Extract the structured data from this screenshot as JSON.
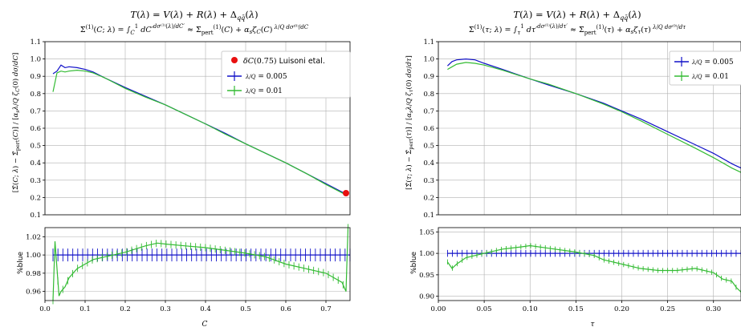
{
  "figure": {
    "colors": {
      "blue": "#1010c8",
      "green": "#33bb33",
      "red": "#e81010",
      "grid": "#b0b0b0"
    }
  },
  "chart_data": [
    {
      "type": "line",
      "title_line1": "T(λ) = V(λ) + R(λ) + Δ_qq̄(λ)",
      "title_line2": "Σ̄⁽¹⁾(C;λ) = ∫_C¹ dC′ dσ⁽¹⁾(λ)/dC′ ≈ Σ̄⁽¹⁾_pert(C) + α_s ζ_C(C) (λ/Q) dσ⁽⁰⁾/dC",
      "ylabel": "[Σ̄(C;λ) − Σ̄_pert(C)] / [α_s (λ/Q) ζ_C(0) dσ/dC]",
      "xlabel": "C",
      "xlim": [
        0.0,
        0.76
      ],
      "ylim": [
        0.1,
        1.1
      ],
      "xticks": [
        0.0,
        0.1,
        0.2,
        0.3,
        0.4,
        0.5,
        0.6,
        0.7
      ],
      "yticks": [
        0.1,
        0.2,
        0.3,
        0.4,
        0.5,
        0.6,
        0.7,
        0.8,
        0.9,
        1.0,
        1.1
      ],
      "grid": true,
      "legend": "top-right",
      "legend_entries": [
        "δC(0.75) Luisoni etal.",
        "λ/Q = 0.005",
        "λ/Q = 0.01"
      ],
      "point": {
        "name": "δC(0.75) Luisoni etal.",
        "x": 0.75,
        "y": 0.225
      },
      "series": [
        {
          "name": "λ/Q = 0.005",
          "color": "blue",
          "x": [
            0.02,
            0.03,
            0.04,
            0.05,
            0.06,
            0.08,
            0.1,
            0.12,
            0.15,
            0.2,
            0.25,
            0.3,
            0.35,
            0.4,
            0.45,
            0.5,
            0.55,
            0.6,
            0.65,
            0.7,
            0.75
          ],
          "y": [
            0.915,
            0.93,
            0.965,
            0.95,
            0.955,
            0.95,
            0.94,
            0.925,
            0.89,
            0.835,
            0.785,
            0.735,
            0.68,
            0.625,
            0.57,
            0.51,
            0.455,
            0.4,
            0.34,
            0.28,
            0.22
          ]
        },
        {
          "name": "λ/Q = 0.01",
          "color": "green",
          "x": [
            0.02,
            0.03,
            0.04,
            0.05,
            0.06,
            0.08,
            0.1,
            0.12,
            0.15,
            0.2,
            0.25,
            0.3,
            0.35,
            0.4,
            0.45,
            0.5,
            0.55,
            0.6,
            0.65,
            0.7,
            0.75
          ],
          "y": [
            0.81,
            0.92,
            0.93,
            0.925,
            0.93,
            0.935,
            0.93,
            0.92,
            0.89,
            0.83,
            0.78,
            0.735,
            0.68,
            0.625,
            0.565,
            0.51,
            0.455,
            0.4,
            0.34,
            0.275,
            0.215
          ]
        }
      ]
    },
    {
      "type": "line",
      "ylabel": "%blue",
      "xlabel": "C",
      "xlim": [
        0.0,
        0.76
      ],
      "ylim": [
        0.95,
        1.03
      ],
      "xticks": [
        0.0,
        0.1,
        0.2,
        0.3,
        0.4,
        0.5,
        0.6,
        0.7
      ],
      "xtick_labels": [
        "0.0",
        "0.1",
        "0.2",
        "0.3",
        "0.4",
        "0.5",
        "0.6",
        "0.7"
      ],
      "yticks": [
        0.96,
        0.98,
        1.0,
        1.02
      ],
      "ytick_labels": [
        "0.96",
        "0.98",
        "1.00",
        "1.02"
      ],
      "grid": true,
      "series": [
        {
          "name": "blue",
          "color": "blue",
          "x": [
            0.02,
            0.76
          ],
          "y": [
            1.0,
            1.0
          ]
        },
        {
          "name": "green",
          "color": "green",
          "x": [
            0.02,
            0.025,
            0.03,
            0.035,
            0.04,
            0.05,
            0.06,
            0.08,
            0.1,
            0.12,
            0.15,
            0.2,
            0.25,
            0.28,
            0.3,
            0.35,
            0.4,
            0.45,
            0.5,
            0.55,
            0.6,
            0.65,
            0.7,
            0.72,
            0.74,
            0.75,
            0.755
          ],
          "y": [
            0.95,
            1.015,
            0.985,
            0.955,
            0.96,
            0.965,
            0.975,
            0.985,
            0.99,
            0.995,
            0.998,
            1.003,
            1.01,
            1.013,
            1.012,
            1.01,
            1.008,
            1.005,
            1.002,
            0.998,
            0.99,
            0.985,
            0.98,
            0.975,
            0.97,
            0.96,
            1.03
          ]
        }
      ]
    },
    {
      "type": "line",
      "title_line1": "T(λ) = V(λ) + R(λ) + Δ_qq̄(λ)",
      "title_line2": "Σ̄⁽¹⁾(τ;λ) = ∫_τ¹ dτ′ dσ⁽¹⁾(λ)/dτ′ ≈ Σ̄⁽¹⁾_pert(τ) + α_s ζ_τ(τ) (λ/Q) dσ⁽⁰⁾/dτ",
      "ylabel": "[Σ̄(τ;λ) − Σ̄_pert(τ)] / [α_s (λ/Q) ζ_τ(0) dσ/dτ]",
      "xlabel": "τ",
      "xlim": [
        0.0,
        0.33
      ],
      "ylim": [
        0.1,
        1.1
      ],
      "xticks": [
        0.0,
        0.05,
        0.1,
        0.15,
        0.2,
        0.25,
        0.3
      ],
      "yticks": [
        0.1,
        0.2,
        0.3,
        0.4,
        0.5,
        0.6,
        0.7,
        0.8,
        0.9,
        1.0,
        1.1
      ],
      "grid": true,
      "legend": "top-right",
      "legend_entries": [
        "λ/Q = 0.005",
        "λ/Q = 0.01"
      ],
      "series": [
        {
          "name": "λ/Q = 0.005",
          "color": "blue",
          "x": [
            0.01,
            0.015,
            0.02,
            0.03,
            0.04,
            0.05,
            0.07,
            0.1,
            0.12,
            0.15,
            0.18,
            0.2,
            0.22,
            0.25,
            0.28,
            0.3,
            0.32,
            0.33
          ],
          "y": [
            0.96,
            0.985,
            0.995,
            1.0,
            0.995,
            0.975,
            0.94,
            0.885,
            0.85,
            0.8,
            0.745,
            0.7,
            0.655,
            0.58,
            0.505,
            0.455,
            0.395,
            0.37
          ]
        },
        {
          "name": "λ/Q = 0.01",
          "color": "green",
          "x": [
            0.01,
            0.015,
            0.02,
            0.03,
            0.04,
            0.05,
            0.07,
            0.1,
            0.12,
            0.15,
            0.18,
            0.2,
            0.22,
            0.25,
            0.28,
            0.3,
            0.32,
            0.33
          ],
          "y": [
            0.94,
            0.955,
            0.97,
            0.98,
            0.975,
            0.965,
            0.935,
            0.885,
            0.855,
            0.8,
            0.74,
            0.695,
            0.645,
            0.565,
            0.485,
            0.43,
            0.37,
            0.345
          ]
        }
      ]
    },
    {
      "type": "line",
      "ylabel": "%blue",
      "xlabel": "τ",
      "xlim": [
        0.0,
        0.33
      ],
      "ylim": [
        0.89,
        1.06
      ],
      "xticks": [
        0.0,
        0.05,
        0.1,
        0.15,
        0.2,
        0.25,
        0.3
      ],
      "xtick_labels": [
        "0.00",
        "0.05",
        "0.10",
        "0.15",
        "0.20",
        "0.25",
        "0.30"
      ],
      "yticks": [
        0.9,
        0.95,
        1.0,
        1.05
      ],
      "ytick_labels": [
        "0.90",
        "0.95",
        "1.00",
        "1.05"
      ],
      "grid": true,
      "series": [
        {
          "name": "blue",
          "color": "blue",
          "x": [
            0.01,
            0.33
          ],
          "y": [
            1.0,
            1.0
          ]
        },
        {
          "name": "green",
          "color": "green",
          "x": [
            0.01,
            0.015,
            0.02,
            0.03,
            0.05,
            0.07,
            0.09,
            0.1,
            0.12,
            0.15,
            0.17,
            0.18,
            0.2,
            0.22,
            0.24,
            0.26,
            0.28,
            0.3,
            0.31,
            0.32,
            0.325,
            0.33
          ],
          "y": [
            0.98,
            0.965,
            0.975,
            0.99,
            1.0,
            1.01,
            1.015,
            1.018,
            1.012,
            1.003,
            0.995,
            0.985,
            0.975,
            0.965,
            0.96,
            0.96,
            0.965,
            0.955,
            0.94,
            0.935,
            0.92,
            0.91
          ]
        }
      ]
    }
  ]
}
